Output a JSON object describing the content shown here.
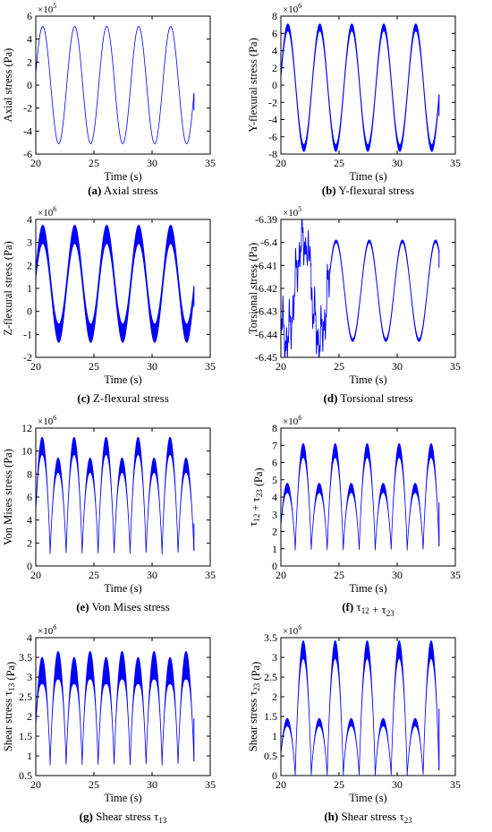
{
  "figure": {
    "panels": [
      {
        "id": "a",
        "tag": "(a)",
        "caption": "Axial stress",
        "ylabel": "Axial stress (Pa)",
        "xlabel": "Time (s)",
        "exponent": "×10",
        "exponent_power": "5"
      },
      {
        "id": "b",
        "tag": "(b)",
        "caption": "Y-flexural stress",
        "ylabel": "Y-flexural stress (Pa)",
        "xlabel": "Time (s)",
        "exponent": "×10",
        "exponent_power": "6"
      },
      {
        "id": "c",
        "tag": "(c)",
        "caption": "Z-flexural stress",
        "ylabel": "Z-flexural stress (Pa)",
        "xlabel": "Time (s)",
        "exponent": "×10",
        "exponent_power": "6"
      },
      {
        "id": "d",
        "tag": "(d)",
        "caption": "Torsional stress",
        "ylabel": "Torsional stress (Pa)",
        "xlabel": "Time (s)",
        "exponent": "×10",
        "exponent_power": "5"
      },
      {
        "id": "e",
        "tag": "(e)",
        "caption": "Von Mises stress",
        "ylabel": "Von Mises stress (Pa)",
        "xlabel": "Time (s)",
        "exponent": "×10",
        "exponent_power": "6"
      },
      {
        "id": "f",
        "tag": "(f)",
        "caption": "τ12 + τ23",
        "ylabel": "τ12 + τ23 (Pa)",
        "xlabel": "Time (s)",
        "exponent": "×10",
        "exponent_power": "6"
      },
      {
        "id": "g",
        "tag": "(g)",
        "caption": "Shear stress τ13",
        "ylabel": "Shear stress τ13 (Pa)",
        "xlabel": "Time (s)",
        "exponent": "×10",
        "exponent_power": "6"
      },
      {
        "id": "h",
        "tag": "(h)",
        "caption": "Shear stress τ23",
        "ylabel": "Shear stress τ23 (Pa)",
        "xlabel": "Time (s)",
        "exponent": "×10",
        "exponent_power": "6"
      }
    ]
  },
  "colors": {
    "series": "#0000ff",
    "axis": "#000000"
  },
  "chart_data": [
    {
      "id": "a",
      "type": "line",
      "title": "Axial stress",
      "xlabel": "Time (s)",
      "ylabel": "Axial stress (Pa)",
      "y_multiplier": "×10^5",
      "xlim": [
        20,
        35
      ],
      "ylim": [
        -6,
        6
      ],
      "xticks": [
        20,
        25,
        30,
        35
      ],
      "yticks": [
        -6,
        -4,
        -2,
        0,
        2,
        4,
        6
      ],
      "signal": {
        "kind": "sine",
        "t_start": 20,
        "t_end": 33.6,
        "period": 2.75,
        "peak_time": 20.6,
        "mean": 0,
        "amplitude": 5.1,
        "band": 0
      },
      "series": [
        {
          "peaks_x": [
            20.6,
            23.35,
            26.1,
            28.85,
            31.6
          ],
          "peak_y": 5.1,
          "trough_y": -5.1,
          "end_y": -2.2
        }
      ]
    },
    {
      "id": "b",
      "type": "line",
      "title": "Y-flexural stress",
      "xlabel": "Time (s)",
      "ylabel": "Y-flexural stress (Pa)",
      "y_multiplier": "×10^6",
      "xlim": [
        20,
        35
      ],
      "ylim": [
        -8,
        8
      ],
      "xticks": [
        20,
        25,
        30,
        35
      ],
      "yticks": [
        -8,
        -6,
        -4,
        -2,
        0,
        2,
        4,
        6,
        8
      ],
      "signal": {
        "kind": "sine",
        "t_start": 20,
        "t_end": 33.6,
        "period": 2.75,
        "peak_time": 20.6,
        "mean": -0.3,
        "amplitude": 7.0,
        "band": 0.8
      },
      "series": [
        {
          "peaks_x": [
            20.6,
            23.35,
            26.1,
            28.85,
            31.6
          ],
          "peak_y": 7.3,
          "trough_y": -7.8,
          "end_y": -3.6
        }
      ]
    },
    {
      "id": "c",
      "type": "line",
      "title": "Z-flexural stress",
      "xlabel": "Time (s)",
      "ylabel": "Z-flexural stress (Pa)",
      "y_multiplier": "×10^6",
      "xlim": [
        20,
        35
      ],
      "ylim": [
        -2,
        4
      ],
      "xticks": [
        20,
        25,
        30,
        35
      ],
      "yticks": [
        -2,
        -1,
        0,
        1,
        2,
        3,
        4
      ],
      "signal": {
        "kind": "sine",
        "t_start": 20,
        "t_end": 33.6,
        "period": 2.75,
        "peak_time": 20.6,
        "mean": 1.2,
        "amplitude": 2.15,
        "band": 0.8
      },
      "series": [
        {
          "peaks_x": [
            20.6,
            23.35,
            26.1,
            28.85,
            31.6
          ],
          "peak_y": 3.6,
          "trough_y": -1.0,
          "end_y": 0.2
        }
      ]
    },
    {
      "id": "d",
      "type": "line",
      "title": "Torsional stress",
      "xlabel": "Time (s)",
      "ylabel": "Torsional stress (Pa)",
      "y_multiplier": "×10^5",
      "xlim": [
        20,
        35
      ],
      "ylim": [
        -6.45,
        -6.39
      ],
      "xticks": [
        20,
        25,
        30,
        35
      ],
      "yticks": [
        -6.45,
        -6.44,
        -6.43,
        -6.42,
        -6.41,
        -6.4,
        -6.39
      ],
      "signal": {
        "kind": "torsional",
        "t_start": 20,
        "t_end": 33.6,
        "period": 2.85,
        "peak_time": 27.6,
        "mean": -6.421,
        "amplitude": 0.0215,
        "band": 0.0012
      },
      "series": [
        {
          "peaks_x": [
            21.7,
            24.9,
            27.6,
            30.5,
            33.2
          ],
          "peak_y": -6.4,
          "trough_y": -6.444,
          "end_y": -6.411
        }
      ]
    },
    {
      "id": "e",
      "type": "line",
      "title": "Von Mises stress",
      "xlabel": "Time (s)",
      "ylabel": "Von Mises stress (Pa)",
      "y_multiplier": "×10^6",
      "xlim": [
        20,
        35
      ],
      "ylim": [
        0,
        12
      ],
      "xticks": [
        20,
        25,
        30,
        35
      ],
      "yticks": [
        0,
        2,
        4,
        6,
        8,
        10,
        12
      ],
      "signal": {
        "kind": "humps",
        "t_start": 20,
        "t_end": 33.6,
        "period": 1.375,
        "first_node": 19.86,
        "floor": 1.0,
        "heights": [
          11.2,
          9.4
        ],
        "band": 1.5,
        "band_hump": 0,
        "end_y": 3.7
      },
      "series": [
        {
          "big_peaks_x": [
            20.6,
            23.35,
            26.1,
            28.85,
            31.6
          ],
          "big_peak_y": 11.2,
          "small_peak_y": 9.4,
          "min_y": 1.0
        }
      ]
    },
    {
      "id": "f",
      "type": "line",
      "title": "τ12 + τ23",
      "xlabel": "Time (s)",
      "ylabel": "τ12 + τ23 (Pa)",
      "y_multiplier": "×10^6",
      "xlim": [
        20,
        35
      ],
      "ylim": [
        0,
        8
      ],
      "xticks": [
        20,
        25,
        30,
        35
      ],
      "yticks": [
        0,
        1,
        2,
        3,
        4,
        5,
        6,
        7,
        8
      ],
      "signal": {
        "kind": "humps",
        "t_start": 20,
        "t_end": 33.6,
        "period": 1.375,
        "first_node": 19.86,
        "floor": 0.9,
        "heights": [
          4.8,
          7.1
        ],
        "band": 0.8,
        "band_hump": 0,
        "end_y": 3.7
      },
      "series": [
        {
          "big_peaks_x": [
            22.0,
            24.75,
            27.5,
            30.25,
            33.0
          ],
          "big_peak_y": 7.1,
          "small_peak_y": 4.8,
          "min_y": 0.9
        }
      ]
    },
    {
      "id": "g",
      "type": "line",
      "title": "Shear stress τ13",
      "xlabel": "Time (s)",
      "ylabel": "Shear stress τ13 (Pa)",
      "y_multiplier": "×10^6",
      "xlim": [
        20,
        35
      ],
      "ylim": [
        0.5,
        4
      ],
      "xticks": [
        20,
        25,
        30,
        35
      ],
      "yticks": [
        0.5,
        1,
        1.5,
        2,
        2.5,
        3,
        3.5,
        4
      ],
      "signal": {
        "kind": "humps",
        "t_start": 20,
        "t_end": 33.6,
        "period": 1.375,
        "first_node": 19.86,
        "floor": 0.75,
        "heights": [
          3.5,
          3.65
        ],
        "band": 0.7,
        "band_hump": 0,
        "end_y": 1.95
      },
      "series": [
        {
          "peak_y": 3.65,
          "min_y": 0.75
        }
      ]
    },
    {
      "id": "h",
      "type": "line",
      "title": "Shear stress τ23",
      "xlabel": "Time (s)",
      "ylabel": "Shear stress τ23 (Pa)",
      "y_multiplier": "×10^6",
      "xlim": [
        20,
        35
      ],
      "ylim": [
        0,
        3.5
      ],
      "xticks": [
        20,
        25,
        30,
        35
      ],
      "yticks": [
        0,
        0.5,
        1,
        1.5,
        2,
        2.5,
        3,
        3.5
      ],
      "signal": {
        "kind": "humps",
        "t_start": 20,
        "t_end": 33.6,
        "period": 1.375,
        "first_node": 19.86,
        "floor": 0.0,
        "heights": [
          1.45,
          3.42
        ],
        "band": 0.45,
        "band_hump": 0,
        "end_y": 1.7
      },
      "series": [
        {
          "big_peaks_x": [
            22.0,
            24.75,
            27.5,
            30.25,
            33.0
          ],
          "big_peak_y": 3.42,
          "small_peak_y": 1.45,
          "min_y": 0.0
        }
      ]
    }
  ]
}
